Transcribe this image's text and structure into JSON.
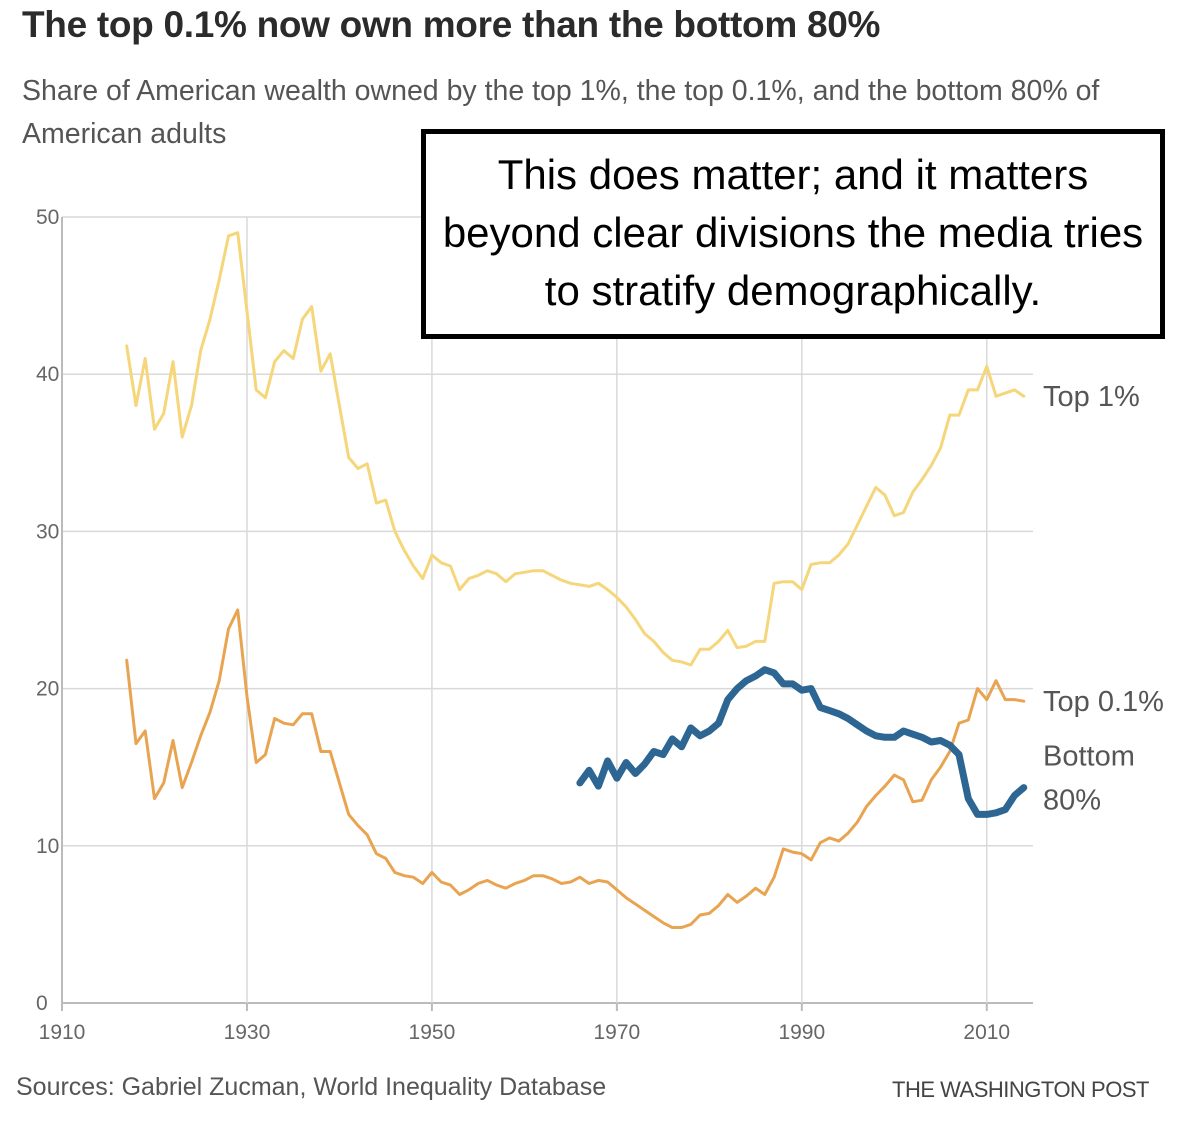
{
  "title": "The top 0.1% now own more than the bottom 80%",
  "subtitle": "Share of American wealth owned by the top 1%, the top 0.1%, and the bottom 80% of American adults",
  "overlay_text": "This does matter; and it matters beyond clear divisions the media tries to stratify demographically.",
  "source": "Sources: Gabriel Zucman, World Inequality Database",
  "brand": "THE WASHINGTON POST",
  "colors": {
    "top1": "#f5d67a",
    "top01": "#e9a452",
    "bottom80": "#2d6693",
    "grid": "#d9d9d9",
    "axis": "#bbbbbb"
  },
  "chart_data": {
    "type": "line",
    "title": "The top 0.1% now own more than the bottom 80%",
    "subtitle": "Share of American wealth owned by the top 1%, the top 0.1%, and the bottom 80% of American adults",
    "xlim": [
      1910,
      2015
    ],
    "ylim": [
      0,
      50
    ],
    "x_ticks": [
      "1910",
      "1930",
      "1950",
      "1970",
      "1990",
      "2010"
    ],
    "y_ticks": [
      "0",
      "10",
      "20",
      "30",
      "40",
      "50"
    ],
    "grid": true,
    "series": [
      {
        "name": "Top 1%",
        "label_lines": [
          "Top 1%"
        ],
        "color": "#f5d67a",
        "points": [
          [
            1917,
            41.8
          ],
          [
            1918,
            38
          ],
          [
            1919,
            41
          ],
          [
            1920,
            36.5
          ],
          [
            1921,
            37.5
          ],
          [
            1922,
            40.8
          ],
          [
            1923,
            36
          ],
          [
            1924,
            38
          ],
          [
            1925,
            41.5
          ],
          [
            1926,
            43.5
          ],
          [
            1927,
            46
          ],
          [
            1928,
            48.8
          ],
          [
            1929,
            49
          ],
          [
            1930,
            44
          ],
          [
            1931,
            39
          ],
          [
            1932,
            38.5
          ],
          [
            1933,
            40.8
          ],
          [
            1934,
            41.5
          ],
          [
            1935,
            41
          ],
          [
            1936,
            43.5
          ],
          [
            1937,
            44.3
          ],
          [
            1938,
            40.2
          ],
          [
            1939,
            41.3
          ],
          [
            1940,
            38
          ],
          [
            1941,
            34.7
          ],
          [
            1942,
            34
          ],
          [
            1943,
            34.3
          ],
          [
            1944,
            31.8
          ],
          [
            1945,
            32
          ],
          [
            1946,
            30
          ],
          [
            1947,
            28.8
          ],
          [
            1948,
            27.8
          ],
          [
            1949,
            27
          ],
          [
            1950,
            28.5
          ],
          [
            1951,
            28
          ],
          [
            1952,
            27.8
          ],
          [
            1953,
            26.3
          ],
          [
            1954,
            27
          ],
          [
            1955,
            27.2
          ],
          [
            1956,
            27.5
          ],
          [
            1957,
            27.3
          ],
          [
            1958,
            26.8
          ],
          [
            1959,
            27.3
          ],
          [
            1960,
            27.4
          ],
          [
            1961,
            27.5
          ],
          [
            1962,
            27.5
          ],
          [
            1963,
            27.2
          ],
          [
            1964,
            26.9
          ],
          [
            1965,
            26.7
          ],
          [
            1966,
            26.6
          ],
          [
            1967,
            26.5
          ],
          [
            1968,
            26.7
          ],
          [
            1969,
            26.3
          ],
          [
            1970,
            25.8
          ],
          [
            1971,
            25.2
          ],
          [
            1972,
            24.4
          ],
          [
            1973,
            23.5
          ],
          [
            1974,
            23
          ],
          [
            1975,
            22.3
          ],
          [
            1976,
            21.8
          ],
          [
            1977,
            21.7
          ],
          [
            1978,
            21.5
          ],
          [
            1979,
            22.5
          ],
          [
            1980,
            22.5
          ],
          [
            1981,
            23
          ],
          [
            1982,
            23.7
          ],
          [
            1983,
            22.6
          ],
          [
            1984,
            22.7
          ],
          [
            1985,
            23
          ],
          [
            1986,
            23
          ],
          [
            1987,
            26.7
          ],
          [
            1988,
            26.8
          ],
          [
            1989,
            26.8
          ],
          [
            1990,
            26.3
          ],
          [
            1991,
            27.9
          ],
          [
            1992,
            28
          ],
          [
            1993,
            28
          ],
          [
            1994,
            28.5
          ],
          [
            1995,
            29.2
          ],
          [
            1996,
            30.4
          ],
          [
            1997,
            31.6
          ],
          [
            1998,
            32.8
          ],
          [
            1999,
            32.3
          ],
          [
            2000,
            31
          ],
          [
            2001,
            31.2
          ],
          [
            2002,
            32.5
          ],
          [
            2003,
            33.3
          ],
          [
            2004,
            34.2
          ],
          [
            2005,
            35.3
          ],
          [
            2006,
            37.4
          ],
          [
            2007,
            37.4
          ],
          [
            2008,
            39
          ],
          [
            2009,
            39
          ],
          [
            2010,
            40.5
          ],
          [
            2011,
            38.6
          ],
          [
            2012,
            38.8
          ],
          [
            2013,
            39
          ],
          [
            2014,
            38.6
          ]
        ]
      },
      {
        "name": "Top 0.1%",
        "label_lines": [
          "Top 0.1%"
        ],
        "color": "#e9a452",
        "points": [
          [
            1917,
            21.8
          ],
          [
            1918,
            16.5
          ],
          [
            1919,
            17.3
          ],
          [
            1920,
            13
          ],
          [
            1921,
            14
          ],
          [
            1922,
            16.7
          ],
          [
            1923,
            13.7
          ],
          [
            1924,
            15.3
          ],
          [
            1925,
            17
          ],
          [
            1926,
            18.5
          ],
          [
            1927,
            20.5
          ],
          [
            1928,
            23.8
          ],
          [
            1929,
            25
          ],
          [
            1930,
            19.5
          ],
          [
            1931,
            15.3
          ],
          [
            1932,
            15.8
          ],
          [
            1933,
            18.1
          ],
          [
            1934,
            17.8
          ],
          [
            1935,
            17.7
          ],
          [
            1936,
            18.4
          ],
          [
            1937,
            18.4
          ],
          [
            1938,
            16
          ],
          [
            1939,
            16
          ],
          [
            1940,
            14
          ],
          [
            1941,
            12
          ],
          [
            1942,
            11.3
          ],
          [
            1943,
            10.7
          ],
          [
            1944,
            9.5
          ],
          [
            1945,
            9.2
          ],
          [
            1946,
            8.3
          ],
          [
            1947,
            8.1
          ],
          [
            1948,
            8
          ],
          [
            1949,
            7.6
          ],
          [
            1950,
            8.3
          ],
          [
            1951,
            7.7
          ],
          [
            1952,
            7.5
          ],
          [
            1953,
            6.9
          ],
          [
            1954,
            7.2
          ],
          [
            1955,
            7.6
          ],
          [
            1956,
            7.8
          ],
          [
            1957,
            7.5
          ],
          [
            1958,
            7.3
          ],
          [
            1959,
            7.6
          ],
          [
            1960,
            7.8
          ],
          [
            1961,
            8.1
          ],
          [
            1962,
            8.1
          ],
          [
            1963,
            7.9
          ],
          [
            1964,
            7.6
          ],
          [
            1965,
            7.7
          ],
          [
            1966,
            8
          ],
          [
            1967,
            7.6
          ],
          [
            1968,
            7.8
          ],
          [
            1969,
            7.7
          ],
          [
            1970,
            7.2
          ],
          [
            1971,
            6.7
          ],
          [
            1972,
            6.3
          ],
          [
            1973,
            5.9
          ],
          [
            1974,
            5.5
          ],
          [
            1975,
            5.1
          ],
          [
            1976,
            4.8
          ],
          [
            1977,
            4.8
          ],
          [
            1978,
            5
          ],
          [
            1979,
            5.6
          ],
          [
            1980,
            5.7
          ],
          [
            1981,
            6.2
          ],
          [
            1982,
            6.9
          ],
          [
            1983,
            6.4
          ],
          [
            1984,
            6.8
          ],
          [
            1985,
            7.3
          ],
          [
            1986,
            6.9
          ],
          [
            1987,
            8
          ],
          [
            1988,
            9.8
          ],
          [
            1989,
            9.6
          ],
          [
            1990,
            9.5
          ],
          [
            1991,
            9.1
          ],
          [
            1992,
            10.2
          ],
          [
            1993,
            10.5
          ],
          [
            1994,
            10.3
          ],
          [
            1995,
            10.8
          ],
          [
            1996,
            11.5
          ],
          [
            1997,
            12.5
          ],
          [
            1998,
            13.2
          ],
          [
            1999,
            13.8
          ],
          [
            2000,
            14.5
          ],
          [
            2001,
            14.2
          ],
          [
            2002,
            12.8
          ],
          [
            2003,
            12.9
          ],
          [
            2004,
            14.2
          ],
          [
            2005,
            15
          ],
          [
            2006,
            16
          ],
          [
            2007,
            17.8
          ],
          [
            2008,
            18
          ],
          [
            2009,
            20
          ],
          [
            2010,
            19.3
          ],
          [
            2011,
            20.5
          ],
          [
            2012,
            19.3
          ],
          [
            2013,
            19.3
          ],
          [
            2014,
            19.2
          ]
        ]
      },
      {
        "name": "Bottom 80%",
        "label_lines": [
          "Bottom",
          "80%"
        ],
        "color": "#2d6693",
        "points": [
          [
            1966,
            14
          ],
          [
            1967,
            14.8
          ],
          [
            1968,
            13.8
          ],
          [
            1969,
            15.4
          ],
          [
            1970,
            14.3
          ],
          [
            1971,
            15.3
          ],
          [
            1972,
            14.6
          ],
          [
            1973,
            15.2
          ],
          [
            1974,
            16
          ],
          [
            1975,
            15.8
          ],
          [
            1976,
            16.8
          ],
          [
            1977,
            16.3
          ],
          [
            1978,
            17.5
          ],
          [
            1979,
            17
          ],
          [
            1980,
            17.3
          ],
          [
            1981,
            17.8
          ],
          [
            1982,
            19.3
          ],
          [
            1983,
            20
          ],
          [
            1984,
            20.5
          ],
          [
            1985,
            20.8
          ],
          [
            1986,
            21.2
          ],
          [
            1987,
            21
          ],
          [
            1988,
            20.3
          ],
          [
            1989,
            20.3
          ],
          [
            1990,
            19.9
          ],
          [
            1991,
            20
          ],
          [
            1992,
            18.8
          ],
          [
            1993,
            18.6
          ],
          [
            1994,
            18.4
          ],
          [
            1995,
            18.1
          ],
          [
            1996,
            17.7
          ],
          [
            1997,
            17.3
          ],
          [
            1998,
            17
          ],
          [
            1999,
            16.9
          ],
          [
            2000,
            16.9
          ],
          [
            2001,
            17.3
          ],
          [
            2002,
            17.1
          ],
          [
            2003,
            16.9
          ],
          [
            2004,
            16.6
          ],
          [
            2005,
            16.7
          ],
          [
            2006,
            16.4
          ],
          [
            2007,
            15.8
          ],
          [
            2008,
            13
          ],
          [
            2009,
            12
          ],
          [
            2010,
            12
          ],
          [
            2011,
            12.1
          ],
          [
            2012,
            12.3
          ],
          [
            2013,
            13.2
          ],
          [
            2014,
            13.7
          ]
        ]
      }
    ]
  }
}
